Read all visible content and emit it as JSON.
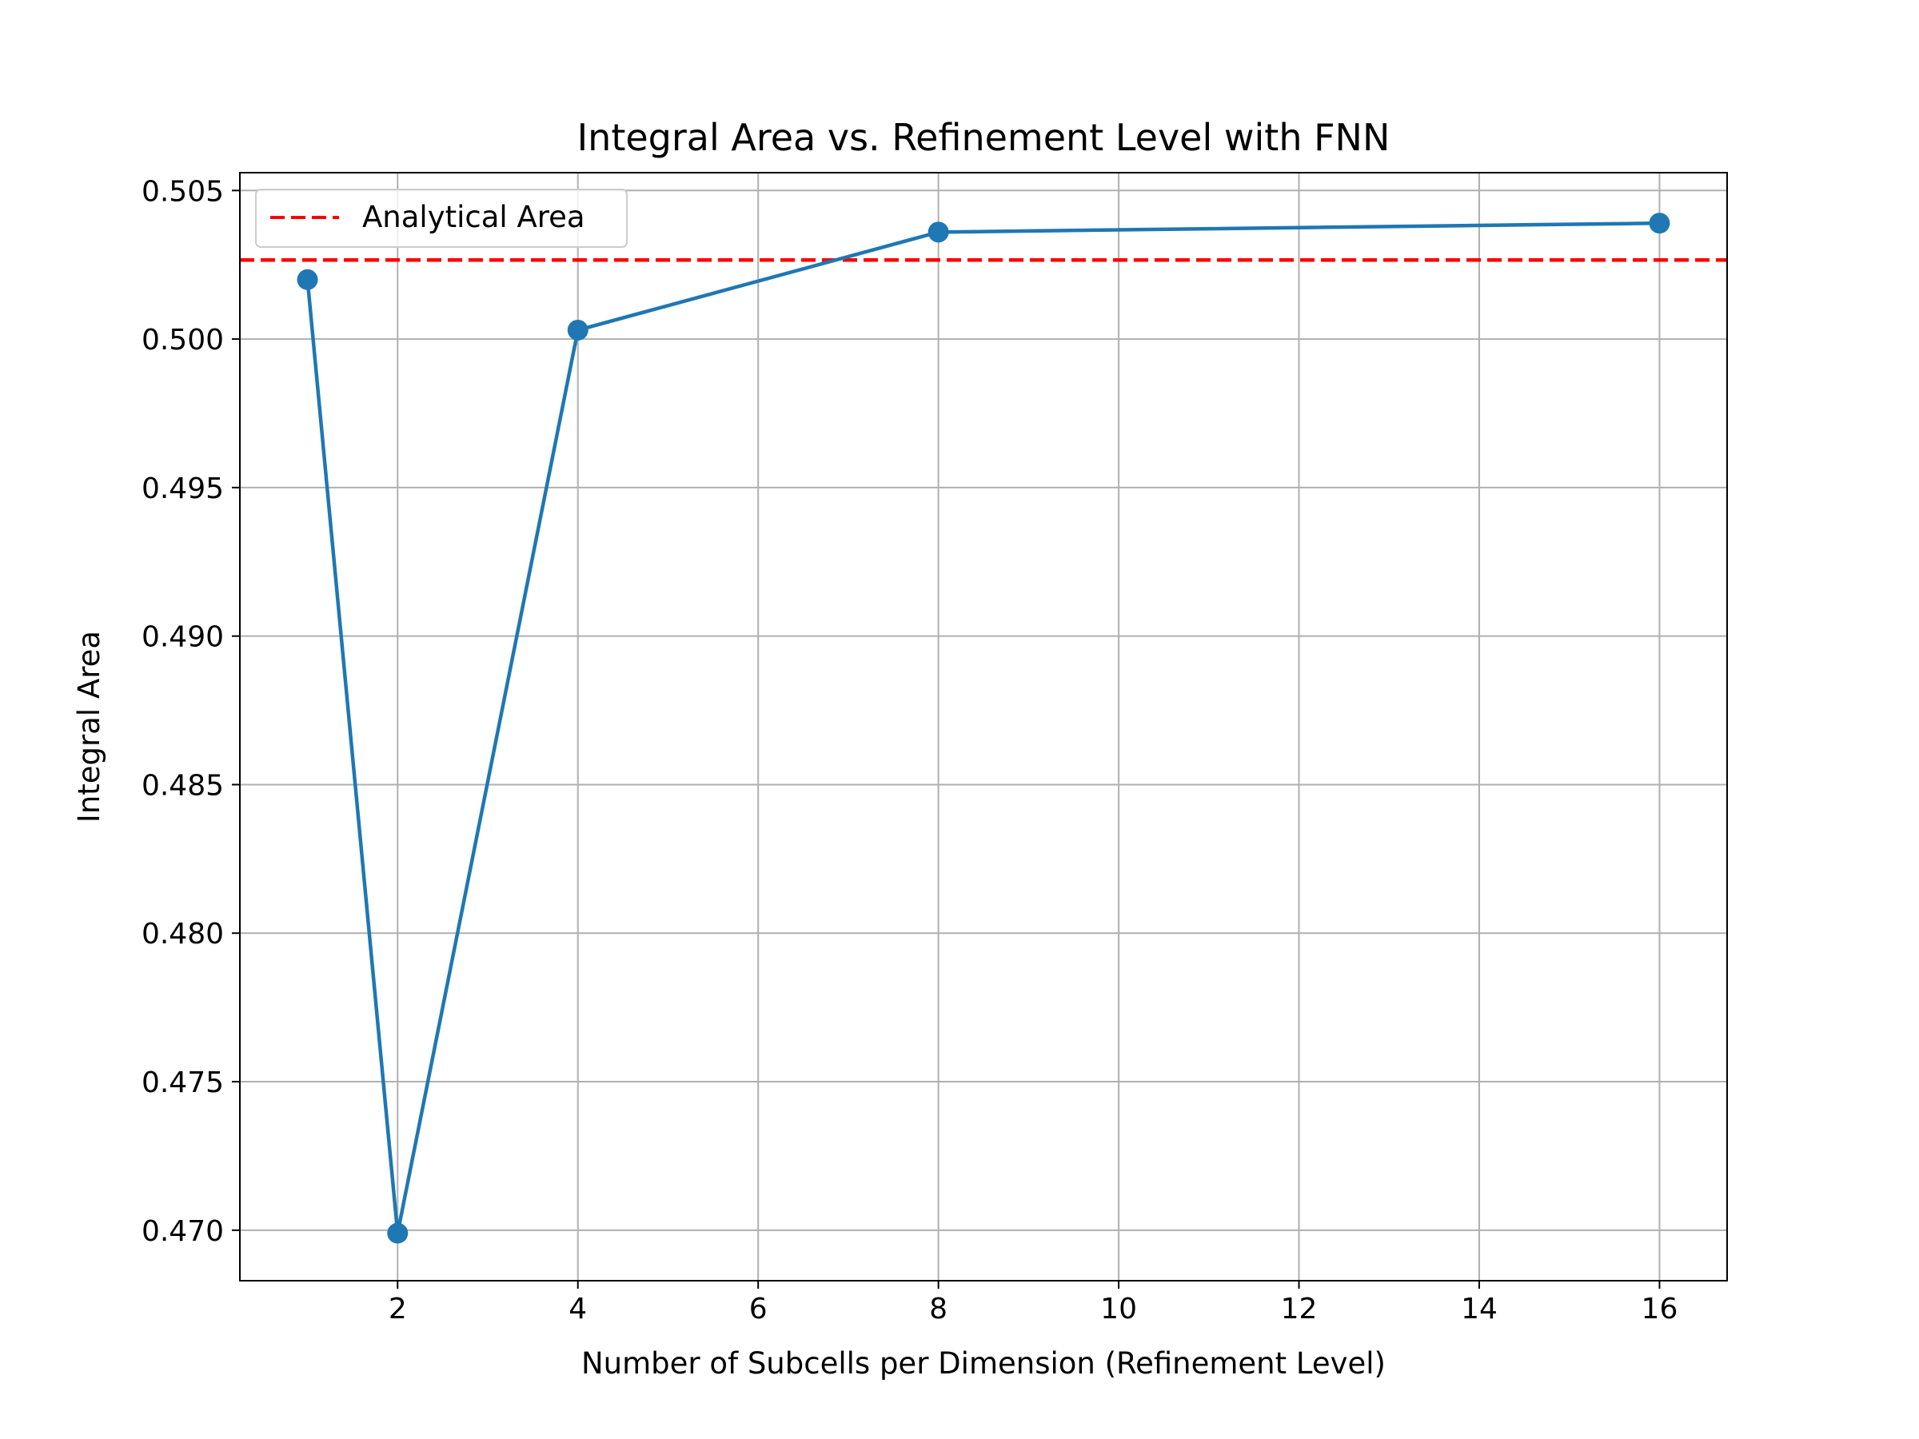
{
  "chart_data": {
    "type": "line",
    "title": "Integral Area vs. Refinement Level with FNN",
    "xlabel": "Number of Subcells per Dimension (Refinement Level)",
    "ylabel": "Integral Area",
    "xlim": [
      0.25,
      16.75
    ],
    "ylim": [
      0.4683,
      0.5056
    ],
    "xticks": [
      2,
      4,
      6,
      8,
      10,
      12,
      14,
      16
    ],
    "xtick_labels": [
      "2",
      "4",
      "6",
      "8",
      "10",
      "12",
      "14",
      "16"
    ],
    "yticks": [
      0.47,
      0.475,
      0.48,
      0.485,
      0.49,
      0.495,
      0.5,
      0.505
    ],
    "ytick_labels": [
      "0.470",
      "0.475",
      "0.480",
      "0.485",
      "0.490",
      "0.495",
      "0.500",
      "0.505"
    ],
    "grid": true,
    "legend_position": "top-left",
    "series": [
      {
        "x": [
          1,
          2,
          4,
          8,
          16
        ],
        "y": [
          0.502,
          0.4699,
          0.5003,
          0.5036,
          0.5039
        ],
        "color": "#1f77b4",
        "style": "solid",
        "marker": "circle"
      }
    ],
    "reference_lines": [
      {
        "name": "Analytical Area",
        "orientation": "horizontal",
        "y": 0.50266,
        "color": "#ff0000",
        "style": "dashed"
      }
    ],
    "legend": [
      {
        "label": "Analytical Area",
        "color": "#ff0000",
        "style": "dashed"
      }
    ]
  }
}
